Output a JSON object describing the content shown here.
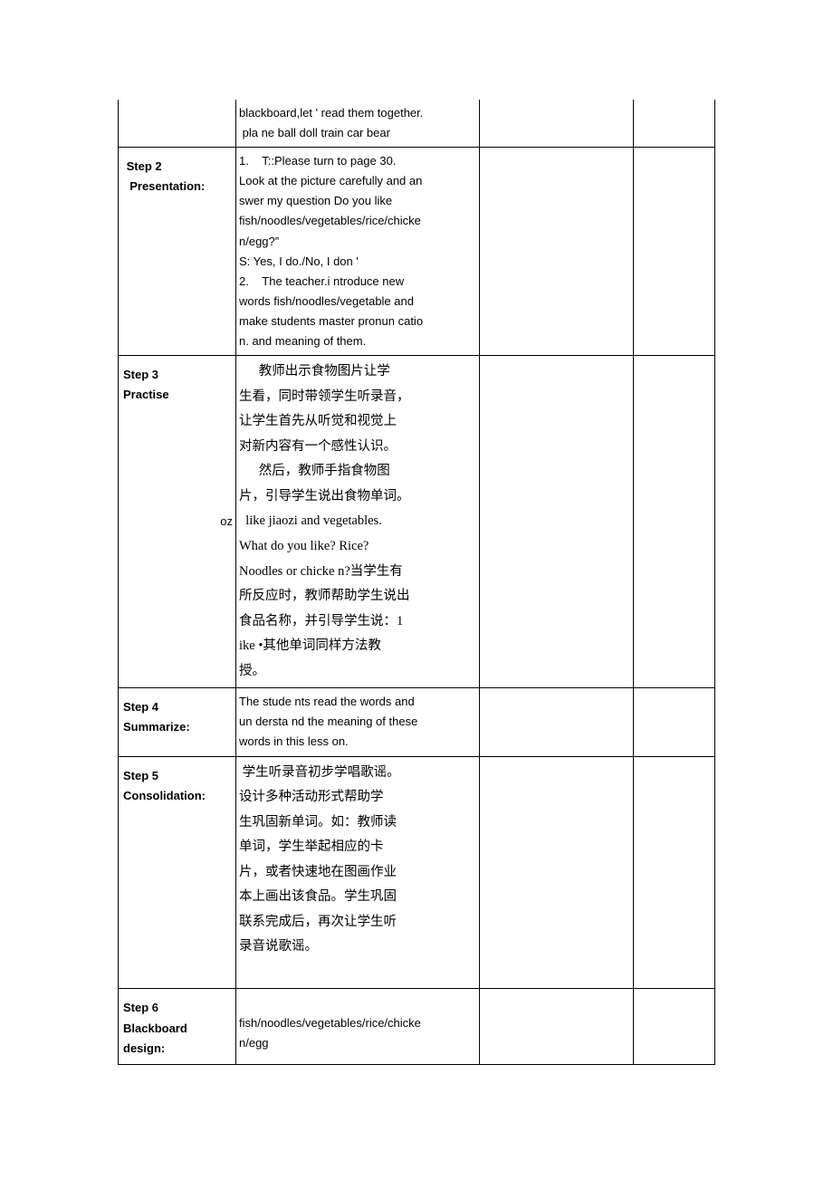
{
  "rows": [
    {
      "label": "",
      "content_html": "blackboard,let ' read them together.<br>&nbsp;pla ne ball doll train car bear"
    },
    {
      "label": "Step 2",
      "label2": "Presentation:",
      "label_bold": true,
      "content_html": "1.&nbsp;&nbsp;&nbsp;&nbsp;T::Please turn to page 30.<br>Look at the picture carefully and an<br>swer my question Do you like<br>fish/noodles/vegetables/rice/chicke<br>n/egg?”<br>S: Yes, I do./No, I don '<br>2.&nbsp;&nbsp;&nbsp;&nbsp;The teacher.i ntroduce new<br>words fish/noodles/vegetable and<br>make students master pronun catio<br>n. and meaning of them."
    },
    {
      "label": "Step 3",
      "label2": "Practise",
      "label_bold": true,
      "label_suffix_right": "oz",
      "content_cn": true,
      "content_html": "<span class=\"indent\" style=\"display:inline-block;\"></span>&nbsp;&nbsp;&nbsp;&nbsp;&nbsp;&nbsp;教师出示食物图片让学<br>生看，同时带领学生听录音，<br>让学生首先从听觉和视觉上<br>对新内容有一个感性认识。<br>&nbsp;&nbsp;&nbsp;&nbsp;&nbsp;&nbsp;然后，教师手指食物图<br>片，引导学生说出食物单词。<br>&nbsp;&nbsp;like jiaozi and vegetables.<br>What do you like? Rice?<br>Noodles or chicke n?当学生有<br>所反应时，教师帮助学生说出<br>食品名称，并引导学生说：1<br>ike •其他单词同样方法教<br>授。"
    },
    {
      "label": "Step 4",
      "label2": "Summarize:",
      "label_bold": true,
      "content_html": "The stude nts read the words and<br>un dersta nd the meaning of these<br>words in this less on."
    },
    {
      "label": "Step 5",
      "label2": "Consolidation:",
      "label_bold": true,
      "content_cn": true,
      "content_html": "&nbsp;学生听录音初步学唱歌谣。<br>设计多种活动形式帮助学<br>生巩固新单词。如：教师读<br>单词，学生举起相应的卡<br>片，或者快速地在图画作业<br>本上画出该食品。学生巩固<br>联系完成后，再次让学生听<br>录音说歌谣。<br>&nbsp;"
    },
    {
      "label": "Step 6",
      "label2": "Blackboard",
      "label3": "design:",
      "label_bold": true,
      "content_html": "<br>fish/noodles/vegetables/rice/chicke<br>n/egg"
    }
  ]
}
